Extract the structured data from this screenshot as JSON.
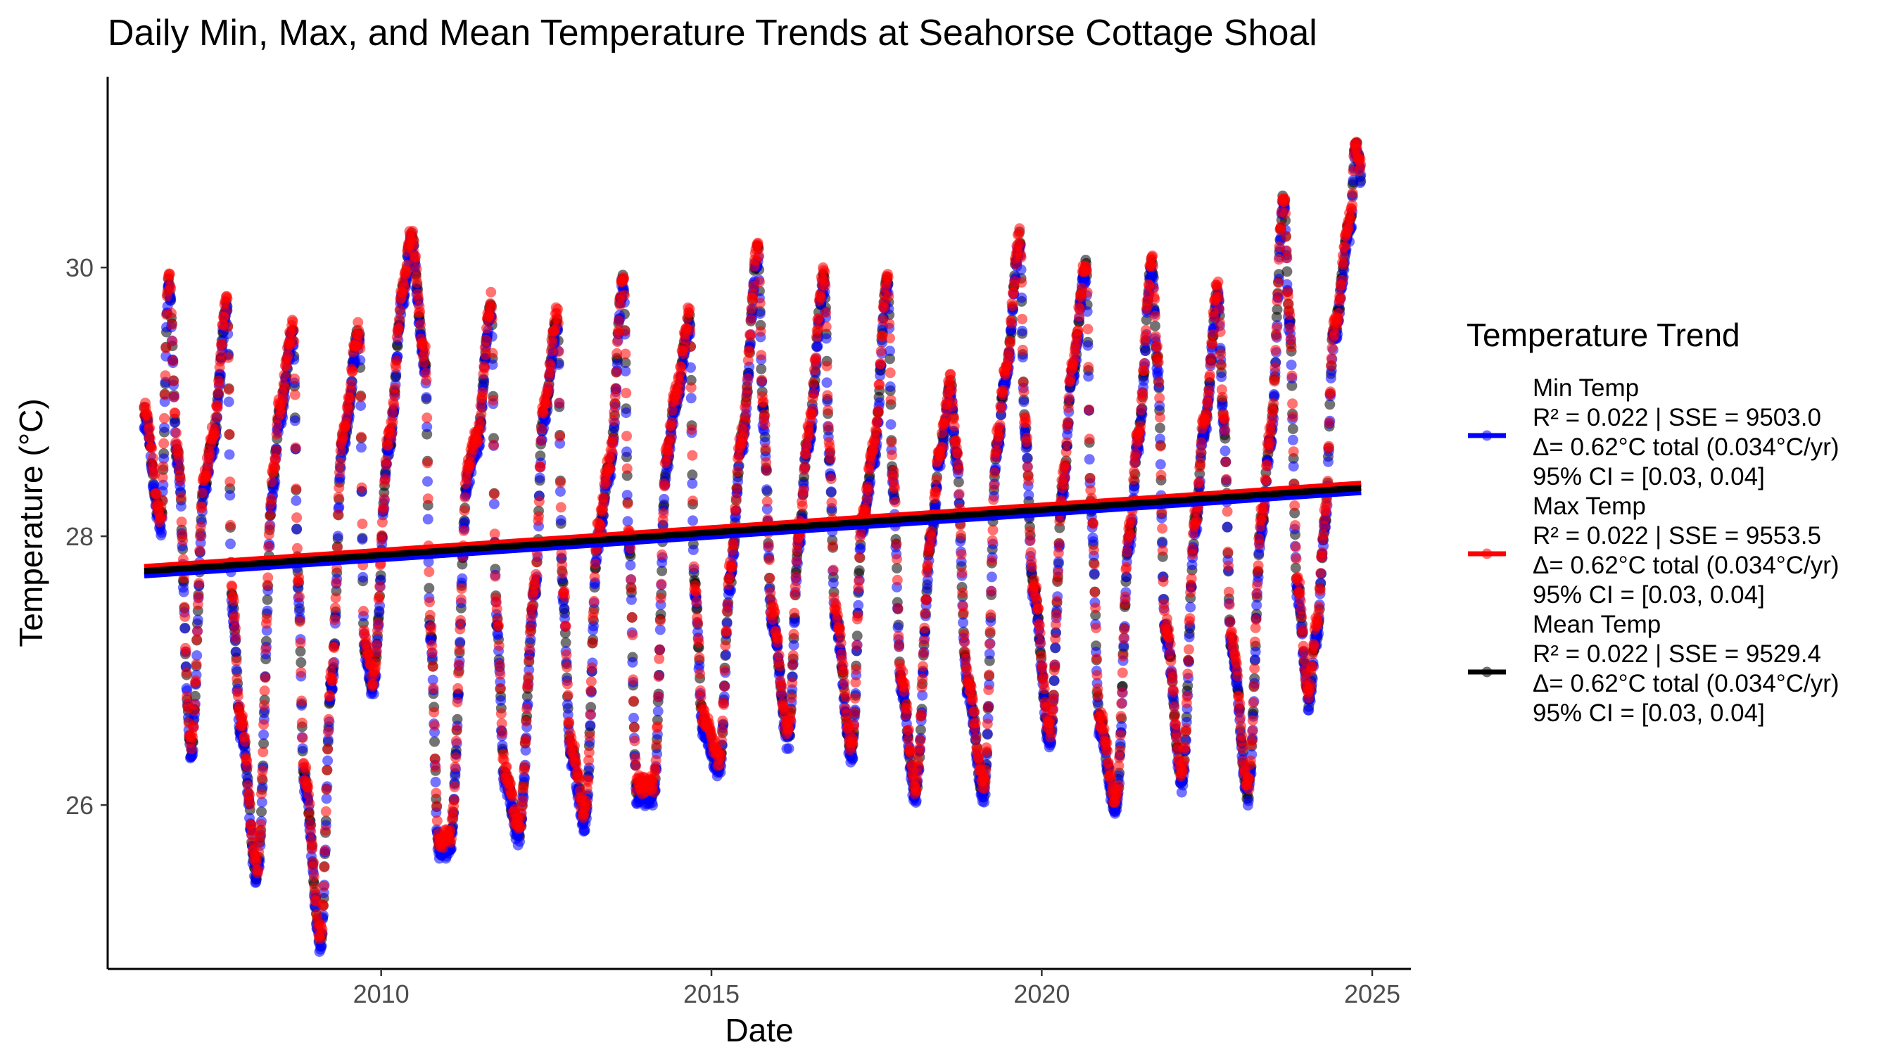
{
  "chart_data": {
    "type": "scatter",
    "title": "Daily Min, Max, and Mean Temperature Trends at Seahorse Cottage Shoal",
    "xlabel": "Date",
    "ylabel": "Temperature (°C)",
    "xlim": [
      "2005-11-11",
      "2025-08-03"
    ],
    "ylim": [
      24.78,
      31.42
    ],
    "x_ticks": [
      {
        "value": "2010-01-01",
        "label": "2010"
      },
      {
        "value": "2015-01-01",
        "label": "2015"
      },
      {
        "value": "2020-01-01",
        "label": "2020"
      },
      {
        "value": "2025-01-01",
        "label": "2025"
      }
    ],
    "y_ticks": [
      {
        "value": 26,
        "label": "26"
      },
      {
        "value": 28,
        "label": "28"
      },
      {
        "value": 30,
        "label": "30"
      }
    ],
    "grid": false,
    "legend": {
      "title": "Temperature Trend",
      "placement": "right"
    },
    "series_order_drawn": [
      "Mean Temp",
      "Min Temp",
      "Max Temp"
    ],
    "trend_lines_drawn": [
      "Min Temp",
      "Max Temp",
      "Mean Temp"
    ],
    "series": [
      {
        "name": "Min Temp",
        "color": "#0000FF",
        "legend_lines": [
          "Min Temp",
          "R² = 0.022 | SSE = 9503.0",
          "Δ= 0.62°C total (0.034°C/yr)",
          "95% CI = [0.03, 0.04]"
        ],
        "trend": {
          "x": [
            "2006-06-01",
            "2024-11-01"
          ],
          "y": [
            27.71,
            28.33
          ]
        }
      },
      {
        "name": "Max Temp",
        "color": "#FF0000",
        "legend_lines": [
          "Max Temp",
          "R² = 0.022 | SSE = 9553.5",
          "Δ= 0.62°C total (0.034°C/yr)",
          "95% CI = [0.03, 0.04]"
        ],
        "trend": {
          "x": [
            "2006-06-01",
            "2024-11-01"
          ],
          "y": [
            27.77,
            28.39
          ]
        }
      },
      {
        "name": "Mean Temp",
        "color": "#000000",
        "legend_lines": [
          "Mean Temp",
          "R² = 0.022 | SSE = 9529.4",
          "Δ= 0.62°C total (0.034°C/yr)",
          "95% CI = [0.03, 0.04]"
        ],
        "trend": {
          "x": [
            "2006-06-01",
            "2024-11-01"
          ],
          "y": [
            27.74,
            28.36
          ]
        }
      }
    ],
    "mean_profile": {
      "x": [
        "2006-06-01",
        "2006-09-01",
        "2006-10-15",
        "2006-12-01",
        "2007-02-15",
        "2007-05-01",
        "2007-06-15",
        "2007-09-01",
        "2007-10-01",
        "2007-11-15",
        "2008-02-15",
        "2008-05-15",
        "2008-06-15",
        "2008-09-01",
        "2008-10-01",
        "2008-11-01",
        "2009-02-01",
        "2009-04-01",
        "2009-06-01",
        "2009-09-01",
        "2009-10-01",
        "2009-11-15",
        "2010-02-15",
        "2010-05-01",
        "2010-06-15",
        "2010-09-01",
        "2010-10-01",
        "2010-11-15",
        "2011-01-15",
        "2011-05-01",
        "2011-06-15",
        "2011-09-01",
        "2011-10-01",
        "2011-11-15",
        "2012-02-01",
        "2012-05-01",
        "2012-06-15",
        "2012-09-01",
        "2012-10-01",
        "2012-11-15",
        "2013-02-01",
        "2013-04-15",
        "2013-06-15",
        "2013-09-01",
        "2013-10-01",
        "2013-11-15",
        "2014-02-15",
        "2014-05-01",
        "2014-06-15",
        "2014-09-01",
        "2014-10-01",
        "2014-11-15",
        "2015-02-15",
        "2015-04-15",
        "2015-06-15",
        "2015-09-15",
        "2015-10-15",
        "2015-12-01",
        "2016-03-01",
        "2016-05-01",
        "2016-06-15",
        "2016-09-15",
        "2016-10-15",
        "2016-11-15",
        "2017-02-15",
        "2017-04-15",
        "2017-06-15",
        "2017-09-01",
        "2017-10-01",
        "2017-11-15",
        "2018-02-01",
        "2018-05-01",
        "2018-06-15",
        "2018-08-15",
        "2018-09-15",
        "2018-11-15",
        "2019-02-15",
        "2019-05-01",
        "2019-06-15",
        "2019-09-01",
        "2019-10-01",
        "2019-11-15",
        "2020-02-15",
        "2020-05-01",
        "2020-06-15",
        "2020-09-01",
        "2020-10-01",
        "2020-11-15",
        "2021-02-15",
        "2021-05-01",
        "2021-06-15",
        "2021-09-01",
        "2021-10-01",
        "2021-11-15",
        "2022-02-15",
        "2022-05-01",
        "2022-06-15",
        "2022-09-01",
        "2022-10-01",
        "2022-11-15",
        "2023-02-15",
        "2023-05-01",
        "2023-06-15",
        "2023-09-01",
        "2023-10-01",
        "2023-11-15",
        "2024-01-15",
        "2024-03-01",
        "2024-04-15",
        "2024-06-01",
        "2024-09-01",
        "2024-10-01",
        "2024-11-01"
      ],
      "y": [
        28.9,
        28.1,
        29.9,
        28.6,
        26.4,
        28.4,
        28.7,
        29.7,
        27.5,
        26.6,
        25.5,
        28.4,
        28.9,
        29.5,
        27.6,
        26.2,
        25.0,
        26.9,
        28.7,
        29.5,
        27.2,
        26.9,
        28.7,
        29.8,
        30.2,
        29.3,
        27.3,
        25.7,
        25.7,
        28.5,
        28.7,
        29.7,
        27.4,
        26.2,
        25.8,
        27.6,
        28.9,
        29.6,
        27.6,
        26.4,
        25.9,
        28.0,
        28.5,
        29.9,
        28.0,
        26.1,
        26.1,
        28.6,
        29.0,
        29.6,
        27.6,
        26.6,
        26.3,
        27.7,
        28.7,
        30.1,
        28.9,
        27.4,
        26.5,
        28.0,
        28.7,
        29.9,
        28.6,
        27.4,
        26.4,
        28.1,
        28.6,
        29.9,
        28.4,
        26.9,
        26.1,
        28.0,
        28.6,
        29.1,
        28.6,
        26.9,
        26.1,
        28.7,
        29.2,
        30.2,
        28.8,
        27.6,
        26.5,
        28.4,
        29.2,
        30.0,
        28.2,
        26.6,
        26.0,
        28.0,
        28.7,
        30.0,
        29.3,
        27.3,
        26.2,
        28.1,
        28.8,
        29.8,
        28.9,
        27.2,
        26.1,
        28.1,
        28.7,
        30.5,
        29.6,
        27.6,
        26.8,
        27.3,
        28.1,
        29.5,
        30.3,
        30.9,
        30.7
      ]
    }
  }
}
